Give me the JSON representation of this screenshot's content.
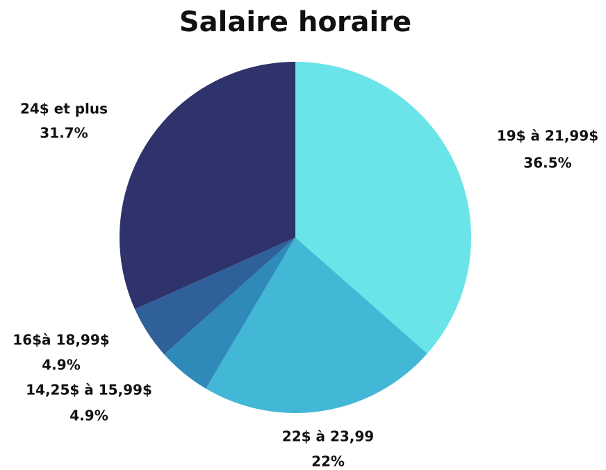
{
  "chart_data": {
    "type": "pie",
    "title": "Salaire horaire",
    "categories": [
      "19$ à 21,99$",
      "22$ à 23,99",
      "14,25$ à 15,99$",
      "16$à 18,99$",
      "24$ et plus"
    ],
    "values": [
      36.5,
      22,
      4.9,
      4.9,
      31.7
    ],
    "value_labels": [
      "36.5%",
      "22%",
      "4.9%",
      "4.9%",
      "31.7%"
    ],
    "colors": [
      "#6ae4e8",
      "#43b8d6",
      "#2f8ab9",
      "#2f609a",
      "#2f336b"
    ]
  }
}
